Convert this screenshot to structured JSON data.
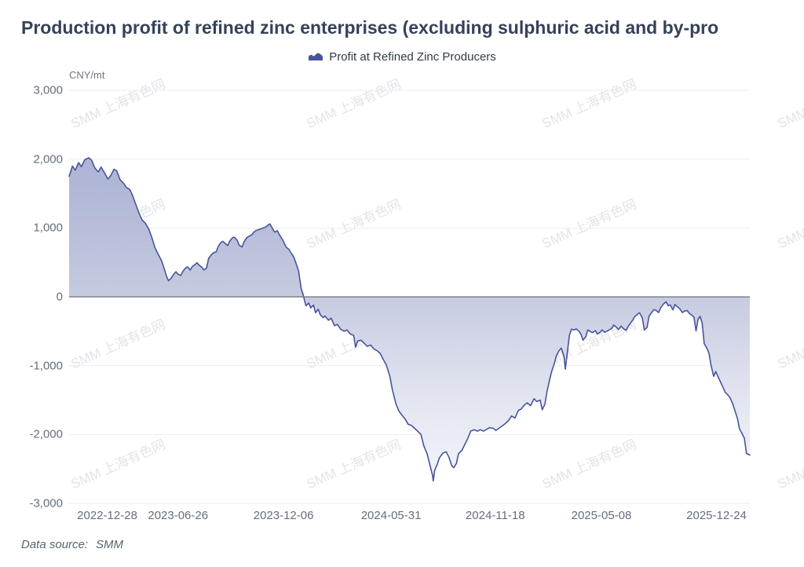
{
  "header": {
    "title": "Production profit of refined zinc enterprises (excluding sulphuric acid and by-pro"
  },
  "legend": {
    "label": "Profit at Refined Zinc Producers",
    "icon": "area-series-icon",
    "icon_color": "#4a5499"
  },
  "footer": {
    "data_source_label": "Data source:",
    "data_source_value": "SMM"
  },
  "watermark": {
    "text": "SMM 上海有色网"
  },
  "chart_data": {
    "type": "area",
    "title": "Production profit of refined zinc enterprises (excluding sulphuric acid and by-pro",
    "unit_label": "CNY/mt",
    "xlabel": "",
    "ylabel": "CNY/mt",
    "ylim": [
      -3000,
      3000
    ],
    "grid": true,
    "legend_position": "top",
    "baseline": 0,
    "colors": {
      "line": "#47549C",
      "area_top": "#a3abd1",
      "area_zero": "#c6cbe0",
      "area_bottom": "#f7f8fc",
      "gridline": "#ebedf2",
      "zero_line": "#6E7079"
    },
    "y_axis": {
      "tick_labels": [
        "3,000",
        "2,000",
        "1,000",
        "0",
        "-1,000",
        "-2,000",
        "-3,000"
      ],
      "tick_values": [
        3000,
        2000,
        1000,
        0,
        -1000,
        -2000,
        -3000
      ]
    },
    "x_axis": {
      "tick_labels": [
        "2022-12-28",
        "2023-06-26",
        "2023-12-06",
        "2024-05-31",
        "2024-11-18",
        "2025-05-08",
        "2025-12-24"
      ],
      "tick_positions": [
        0.056,
        0.16,
        0.315,
        0.473,
        0.626,
        0.782,
        0.951
      ]
    },
    "series": [
      {
        "name": "Profit at Refined Zinc Producers",
        "points": [
          [
            0.0,
            1750
          ],
          [
            0.005,
            1900
          ],
          [
            0.009,
            1840
          ],
          [
            0.014,
            1950
          ],
          [
            0.018,
            1890
          ],
          [
            0.023,
            1990
          ],
          [
            0.029,
            2020
          ],
          [
            0.033,
            1985
          ],
          [
            0.038,
            1870
          ],
          [
            0.043,
            1815
          ],
          [
            0.047,
            1885
          ],
          [
            0.052,
            1800
          ],
          [
            0.057,
            1712
          ],
          [
            0.061,
            1760
          ],
          [
            0.066,
            1855
          ],
          [
            0.07,
            1830
          ],
          [
            0.075,
            1700
          ],
          [
            0.08,
            1650
          ],
          [
            0.084,
            1590
          ],
          [
            0.089,
            1560
          ],
          [
            0.093,
            1480
          ],
          [
            0.098,
            1340
          ],
          [
            0.103,
            1210
          ],
          [
            0.107,
            1120
          ],
          [
            0.112,
            1070
          ],
          [
            0.117,
            985
          ],
          [
            0.121,
            880
          ],
          [
            0.126,
            720
          ],
          [
            0.129,
            655
          ],
          [
            0.133,
            580
          ],
          [
            0.136,
            520
          ],
          [
            0.14,
            400
          ],
          [
            0.143,
            300
          ],
          [
            0.146,
            235
          ],
          [
            0.15,
            270
          ],
          [
            0.153,
            320
          ],
          [
            0.157,
            365
          ],
          [
            0.16,
            330
          ],
          [
            0.164,
            310
          ],
          [
            0.167,
            370
          ],
          [
            0.171,
            420
          ],
          [
            0.174,
            435
          ],
          [
            0.178,
            390
          ],
          [
            0.181,
            440
          ],
          [
            0.185,
            470
          ],
          [
            0.188,
            495
          ],
          [
            0.191,
            460
          ],
          [
            0.195,
            430
          ],
          [
            0.198,
            390
          ],
          [
            0.202,
            420
          ],
          [
            0.205,
            560
          ],
          [
            0.209,
            610
          ],
          [
            0.212,
            640
          ],
          [
            0.216,
            655
          ],
          [
            0.219,
            730
          ],
          [
            0.223,
            790
          ],
          [
            0.226,
            805
          ],
          [
            0.23,
            770
          ],
          [
            0.233,
            745
          ],
          [
            0.236,
            810
          ],
          [
            0.24,
            860
          ],
          [
            0.243,
            865
          ],
          [
            0.247,
            820
          ],
          [
            0.25,
            750
          ],
          [
            0.254,
            725
          ],
          [
            0.257,
            800
          ],
          [
            0.261,
            860
          ],
          [
            0.264,
            880
          ],
          [
            0.268,
            900
          ],
          [
            0.271,
            935
          ],
          [
            0.274,
            960
          ],
          [
            0.278,
            975
          ],
          [
            0.281,
            985
          ],
          [
            0.285,
            1000
          ],
          [
            0.288,
            1010
          ],
          [
            0.292,
            1040
          ],
          [
            0.295,
            1060
          ],
          [
            0.299,
            990
          ],
          [
            0.302,
            940
          ],
          [
            0.306,
            960
          ],
          [
            0.309,
            900
          ],
          [
            0.313,
            840
          ],
          [
            0.316,
            780
          ],
          [
            0.319,
            720
          ],
          [
            0.323,
            690
          ],
          [
            0.326,
            640
          ],
          [
            0.33,
            580
          ],
          [
            0.333,
            500
          ],
          [
            0.337,
            380
          ],
          [
            0.339,
            250
          ],
          [
            0.341,
            120
          ],
          [
            0.344,
            30
          ],
          [
            0.346,
            -60
          ],
          [
            0.348,
            -130
          ],
          [
            0.352,
            -90
          ],
          [
            0.355,
            -160
          ],
          [
            0.359,
            -120
          ],
          [
            0.362,
            -230
          ],
          [
            0.366,
            -180
          ],
          [
            0.369,
            -260
          ],
          [
            0.373,
            -300
          ],
          [
            0.376,
            -280
          ],
          [
            0.381,
            -340
          ],
          [
            0.385,
            -310
          ],
          [
            0.39,
            -420
          ],
          [
            0.394,
            -400
          ],
          [
            0.399,
            -470
          ],
          [
            0.404,
            -500
          ],
          [
            0.408,
            -480
          ],
          [
            0.413,
            -540
          ],
          [
            0.418,
            -560
          ],
          [
            0.421,
            -730
          ],
          [
            0.424,
            -640
          ],
          [
            0.429,
            -630
          ],
          [
            0.434,
            -680
          ],
          [
            0.438,
            -720
          ],
          [
            0.443,
            -700
          ],
          [
            0.448,
            -760
          ],
          [
            0.452,
            -780
          ],
          [
            0.457,
            -820
          ],
          [
            0.461,
            -900
          ],
          [
            0.466,
            -990
          ],
          [
            0.471,
            -1150
          ],
          [
            0.475,
            -1350
          ],
          [
            0.48,
            -1550
          ],
          [
            0.484,
            -1650
          ],
          [
            0.489,
            -1720
          ],
          [
            0.494,
            -1780
          ],
          [
            0.498,
            -1850
          ],
          [
            0.503,
            -1870
          ],
          [
            0.507,
            -1905
          ],
          [
            0.512,
            -1950
          ],
          [
            0.517,
            -2000
          ],
          [
            0.521,
            -2160
          ],
          [
            0.526,
            -2280
          ],
          [
            0.531,
            -2480
          ],
          [
            0.534,
            -2600
          ],
          [
            0.535,
            -2675
          ],
          [
            0.537,
            -2520
          ],
          [
            0.541,
            -2430
          ],
          [
            0.544,
            -2340
          ],
          [
            0.549,
            -2270
          ],
          [
            0.554,
            -2250
          ],
          [
            0.558,
            -2330
          ],
          [
            0.562,
            -2450
          ],
          [
            0.565,
            -2480
          ],
          [
            0.569,
            -2420
          ],
          [
            0.572,
            -2280
          ],
          [
            0.577,
            -2230
          ],
          [
            0.581,
            -2150
          ],
          [
            0.586,
            -2050
          ],
          [
            0.59,
            -1950
          ],
          [
            0.595,
            -1930
          ],
          [
            0.6,
            -1950
          ],
          [
            0.604,
            -1930
          ],
          [
            0.609,
            -1950
          ],
          [
            0.614,
            -1920
          ],
          [
            0.618,
            -1900
          ],
          [
            0.623,
            -1910
          ],
          [
            0.627,
            -1940
          ],
          [
            0.632,
            -1905
          ],
          [
            0.637,
            -1870
          ],
          [
            0.641,
            -1840
          ],
          [
            0.646,
            -1790
          ],
          [
            0.65,
            -1730
          ],
          [
            0.655,
            -1760
          ],
          [
            0.66,
            -1650
          ],
          [
            0.664,
            -1630
          ],
          [
            0.669,
            -1570
          ],
          [
            0.673,
            -1540
          ],
          [
            0.678,
            -1580
          ],
          [
            0.683,
            -1480
          ],
          [
            0.687,
            -1520
          ],
          [
            0.692,
            -1500
          ],
          [
            0.695,
            -1640
          ],
          [
            0.699,
            -1560
          ],
          [
            0.702,
            -1380
          ],
          [
            0.706,
            -1200
          ],
          [
            0.709,
            -1080
          ],
          [
            0.713,
            -960
          ],
          [
            0.716,
            -850
          ],
          [
            0.72,
            -780
          ],
          [
            0.723,
            -745
          ],
          [
            0.727,
            -860
          ],
          [
            0.729,
            -1050
          ],
          [
            0.731,
            -880
          ],
          [
            0.735,
            -560
          ],
          [
            0.738,
            -470
          ],
          [
            0.742,
            -480
          ],
          [
            0.745,
            -465
          ],
          [
            0.749,
            -500
          ],
          [
            0.752,
            -545
          ],
          [
            0.755,
            -630
          ],
          [
            0.759,
            -580
          ],
          [
            0.762,
            -480
          ],
          [
            0.766,
            -505
          ],
          [
            0.769,
            -520
          ],
          [
            0.773,
            -490
          ],
          [
            0.776,
            -540
          ],
          [
            0.78,
            -515
          ],
          [
            0.783,
            -480
          ],
          [
            0.787,
            -515
          ],
          [
            0.79,
            -500
          ],
          [
            0.793,
            -482
          ],
          [
            0.797,
            -460
          ],
          [
            0.8,
            -410
          ],
          [
            0.804,
            -440
          ],
          [
            0.807,
            -475
          ],
          [
            0.811,
            -425
          ],
          [
            0.814,
            -458
          ],
          [
            0.818,
            -487
          ],
          [
            0.821,
            -435
          ],
          [
            0.825,
            -378
          ],
          [
            0.828,
            -337
          ],
          [
            0.831,
            -288
          ],
          [
            0.835,
            -252
          ],
          [
            0.838,
            -232
          ],
          [
            0.842,
            -305
          ],
          [
            0.845,
            -480
          ],
          [
            0.849,
            -445
          ],
          [
            0.852,
            -280
          ],
          [
            0.856,
            -225
          ],
          [
            0.859,
            -185
          ],
          [
            0.863,
            -202
          ],
          [
            0.866,
            -228
          ],
          [
            0.869,
            -162
          ],
          [
            0.873,
            -105
          ],
          [
            0.877,
            -72
          ],
          [
            0.88,
            -128
          ],
          [
            0.883,
            -118
          ],
          [
            0.887,
            -188
          ],
          [
            0.89,
            -112
          ],
          [
            0.894,
            -148
          ],
          [
            0.897,
            -172
          ],
          [
            0.901,
            -228
          ],
          [
            0.904,
            -208
          ],
          [
            0.908,
            -198
          ],
          [
            0.911,
            -238
          ],
          [
            0.915,
            -268
          ],
          [
            0.918,
            -298
          ],
          [
            0.921,
            -495
          ],
          [
            0.924,
            -322
          ],
          [
            0.927,
            -285
          ],
          [
            0.93,
            -380
          ],
          [
            0.933,
            -680
          ],
          [
            0.937,
            -748
          ],
          [
            0.94,
            -818
          ],
          [
            0.943,
            -995
          ],
          [
            0.947,
            -1155
          ],
          [
            0.95,
            -1085
          ],
          [
            0.954,
            -1175
          ],
          [
            0.957,
            -1238
          ],
          [
            0.961,
            -1325
          ],
          [
            0.964,
            -1388
          ],
          [
            0.968,
            -1428
          ],
          [
            0.971,
            -1468
          ],
          [
            0.975,
            -1555
          ],
          [
            0.978,
            -1648
          ],
          [
            0.982,
            -1775
          ],
          [
            0.985,
            -1922
          ],
          [
            0.988,
            -1975
          ],
          [
            0.992,
            -2055
          ],
          [
            0.995,
            -2275
          ],
          [
            0.998,
            -2288
          ],
          [
            1.0,
            -2300
          ]
        ]
      }
    ]
  }
}
